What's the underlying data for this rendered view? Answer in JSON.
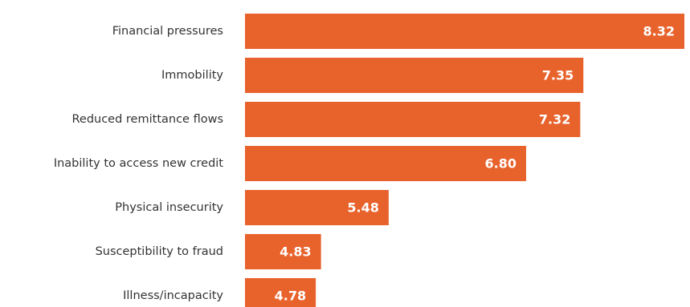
{
  "chart_data": {
    "type": "bar",
    "orientation": "horizontal",
    "categories": [
      "Financial pressures",
      "Immobility",
      "Reduced remittance flows",
      "Inability to access new credit",
      "Physical insecurity",
      "Susceptibility to fraud",
      "Illness/incapacity"
    ],
    "values": [
      8.32,
      7.35,
      7.32,
      6.8,
      5.48,
      4.83,
      4.78
    ],
    "value_labels": [
      "8.32",
      "7.35",
      "7.32",
      "6.80",
      "5.48",
      "4.83",
      "4.78"
    ],
    "title": "",
    "xlabel": "",
    "ylabel": "",
    "xlim": [
      4.1,
      8.32
    ],
    "grid": false,
    "legend": "none"
  },
  "colors": {
    "bar": "#e8622c",
    "value_label": "#ffffff",
    "category_label": "#333333",
    "background": "#ffffff"
  }
}
